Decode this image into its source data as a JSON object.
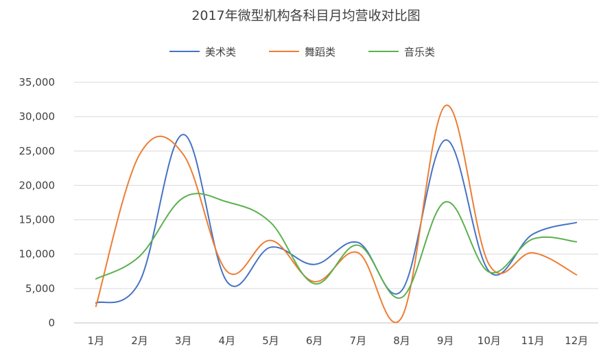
{
  "chart_data": {
    "type": "line",
    "smooth": true,
    "title": "2017年微型机构各科目月均营收对比图",
    "xlabel": "",
    "ylabel": "",
    "categories": [
      "1月",
      "2月",
      "3月",
      "4月",
      "5月",
      "6月",
      "7月",
      "8月",
      "9月",
      "10月",
      "11月",
      "12月"
    ],
    "ylim": [
      0,
      35000
    ],
    "yticks": [
      0,
      5000,
      10000,
      15000,
      20000,
      25000,
      30000,
      35000
    ],
    "ytick_labels": [
      "0",
      "5,000",
      "10,000",
      "15,000",
      "20,000",
      "25,000",
      "30,000",
      "35,000"
    ],
    "grid": true,
    "legend_position": "top",
    "series": [
      {
        "name": "美术类",
        "color": "#4472C4",
        "values": [
          2900,
          6000,
          27400,
          6000,
          11000,
          8500,
          11700,
          4700,
          26600,
          7500,
          12900,
          14600
        ]
      },
      {
        "name": "舞蹈类",
        "color": "#ED7D31",
        "values": [
          2400,
          24500,
          24500,
          7500,
          12000,
          6000,
          10200,
          800,
          31600,
          8500,
          10200,
          7000
        ]
      },
      {
        "name": "音乐类",
        "color": "#5BB04E",
        "values": [
          6400,
          9700,
          18200,
          17600,
          14600,
          5700,
          11300,
          3700,
          17600,
          7400,
          12200,
          11800
        ]
      }
    ]
  }
}
